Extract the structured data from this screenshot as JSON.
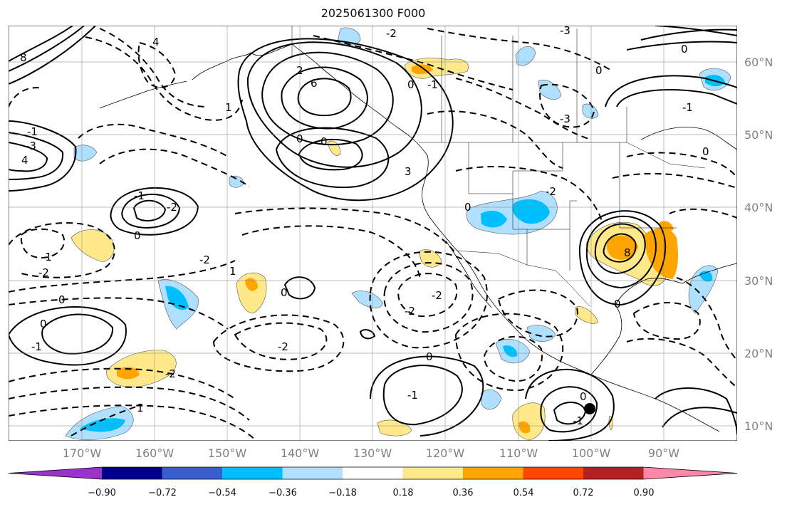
{
  "title": "2025061300 F000",
  "map": {
    "projection": "cylindrical lat-lon",
    "extent": {
      "lon": [
        -180,
        -80
      ],
      "lat": [
        7,
        64
      ]
    },
    "lon_labels": [
      "170°W",
      "160°W",
      "150°W",
      "140°W",
      "130°W",
      "120°W",
      "110°W",
      "100°W",
      "90°W"
    ],
    "lat_labels": [
      "60°N",
      "50°N",
      "40°N",
      "30°N",
      "20°N",
      "10°N"
    ],
    "gridlines": true,
    "contour_labels": [
      "8",
      "4",
      "6",
      "2",
      "0",
      "0",
      "-2",
      "-3",
      "-3",
      "0",
      "4",
      "-1",
      "1",
      "3",
      "0",
      "0",
      "-3",
      "-1",
      "-2",
      "0",
      "-1",
      "0",
      "-2",
      "-2",
      "-2",
      "1",
      "-1",
      "0",
      "0",
      "-2",
      "-2",
      "0",
      "1",
      "0",
      "-1",
      "-2",
      "0",
      "-1",
      "-1",
      "0",
      "8",
      "0",
      "-2",
      "-1"
    ]
  },
  "colorbar": {
    "ticks": [
      "−0.90",
      "−0.72",
      "−0.54",
      "−0.36",
      "−0.18",
      "0.18",
      "0.36",
      "0.54",
      "0.72",
      "0.90"
    ],
    "colors": [
      "#9933cc",
      "#00008b",
      "#3a5fcd",
      "#00bfff",
      "#b0e0ff",
      "#ffffff",
      "#ffe98a",
      "#ffa500",
      "#ff4500",
      "#b22222",
      "#ff88aa"
    ]
  }
}
